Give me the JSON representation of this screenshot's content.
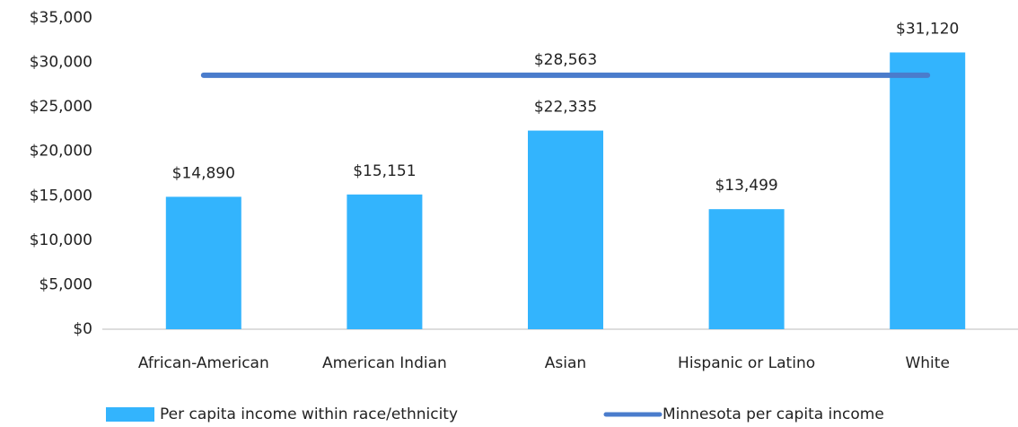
{
  "chart_data": {
    "type": "bar",
    "categories": [
      "African-American",
      "American Indian",
      "Asian",
      "Hispanic or Latino",
      "White"
    ],
    "series": [
      {
        "name": "Per capita income within race/ethnicity",
        "color": "#33b4fd",
        "values": [
          14890,
          15151,
          22335,
          13499,
          31120
        ],
        "value_labels": [
          "$14,890",
          "$15,151",
          "$22,335",
          "$13,499",
          "$31,120"
        ]
      }
    ],
    "reference_line": {
      "name": "Minnesota per capita income",
      "color": "#4a7ccc",
      "value": 28563,
      "value_label": "$28,563"
    },
    "ylim": [
      0,
      35000
    ],
    "yticks": [
      {
        "value": 0,
        "label": "$0"
      },
      {
        "value": 5000,
        "label": "$5,000"
      },
      {
        "value": 10000,
        "label": "$10,000"
      },
      {
        "value": 15000,
        "label": "$15,000"
      },
      {
        "value": 20000,
        "label": "$20,000"
      },
      {
        "value": 25000,
        "label": "$25,000"
      },
      {
        "value": 30000,
        "label": "$30,000"
      },
      {
        "value": 35000,
        "label": "$35,000"
      }
    ],
    "grid": false,
    "legend": "bottom"
  }
}
